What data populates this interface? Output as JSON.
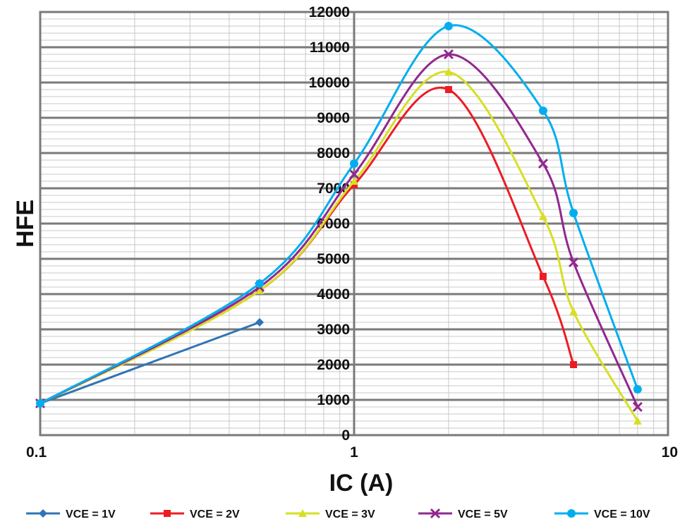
{
  "chart_data": {
    "type": "line",
    "xlabel": "IC (A)",
    "ylabel": "HFE",
    "xscale": "log",
    "xlim": [
      0.1,
      10
    ],
    "ylim": [
      0,
      12000
    ],
    "x_ticks": [
      "0.1",
      "1",
      "10"
    ],
    "y_ticks": [
      "0",
      "1000",
      "2000",
      "3000",
      "4000",
      "5000",
      "6000",
      "7000",
      "8000",
      "9000",
      "10000",
      "11000",
      "12000"
    ],
    "grid": true,
    "legend_position": "bottom",
    "series": [
      {
        "name": "VCE = 1V",
        "color": "#2f74b5",
        "marker": "diamond",
        "x": [
          0.1,
          0.5
        ],
        "y": [
          900,
          3200
        ]
      },
      {
        "name": "VCE = 2V",
        "color": "#ed1c24",
        "marker": "square",
        "x": [
          0.1,
          0.5,
          1,
          2,
          4,
          5
        ],
        "y": [
          900,
          4100,
          7100,
          9800,
          4500,
          2000
        ]
      },
      {
        "name": "VCE = 3V",
        "color": "#d7df23",
        "marker": "triangle",
        "x": [
          0.1,
          0.5,
          1,
          2,
          4,
          5,
          8
        ],
        "y": [
          900,
          4100,
          7200,
          10300,
          6200,
          3500,
          400
        ]
      },
      {
        "name": "VCE = 5V",
        "color": "#92278f",
        "marker": "cross",
        "x": [
          0.1,
          0.5,
          1,
          2,
          4,
          5,
          8
        ],
        "y": [
          900,
          4200,
          7400,
          10800,
          7700,
          4900,
          800
        ]
      },
      {
        "name": "VCE = 10V",
        "color": "#00aeef",
        "marker": "circle",
        "x": [
          0.1,
          0.5,
          1,
          2,
          4,
          5,
          8
        ],
        "y": [
          900,
          4300,
          7700,
          11600,
          9200,
          6300,
          1300
        ]
      }
    ]
  }
}
